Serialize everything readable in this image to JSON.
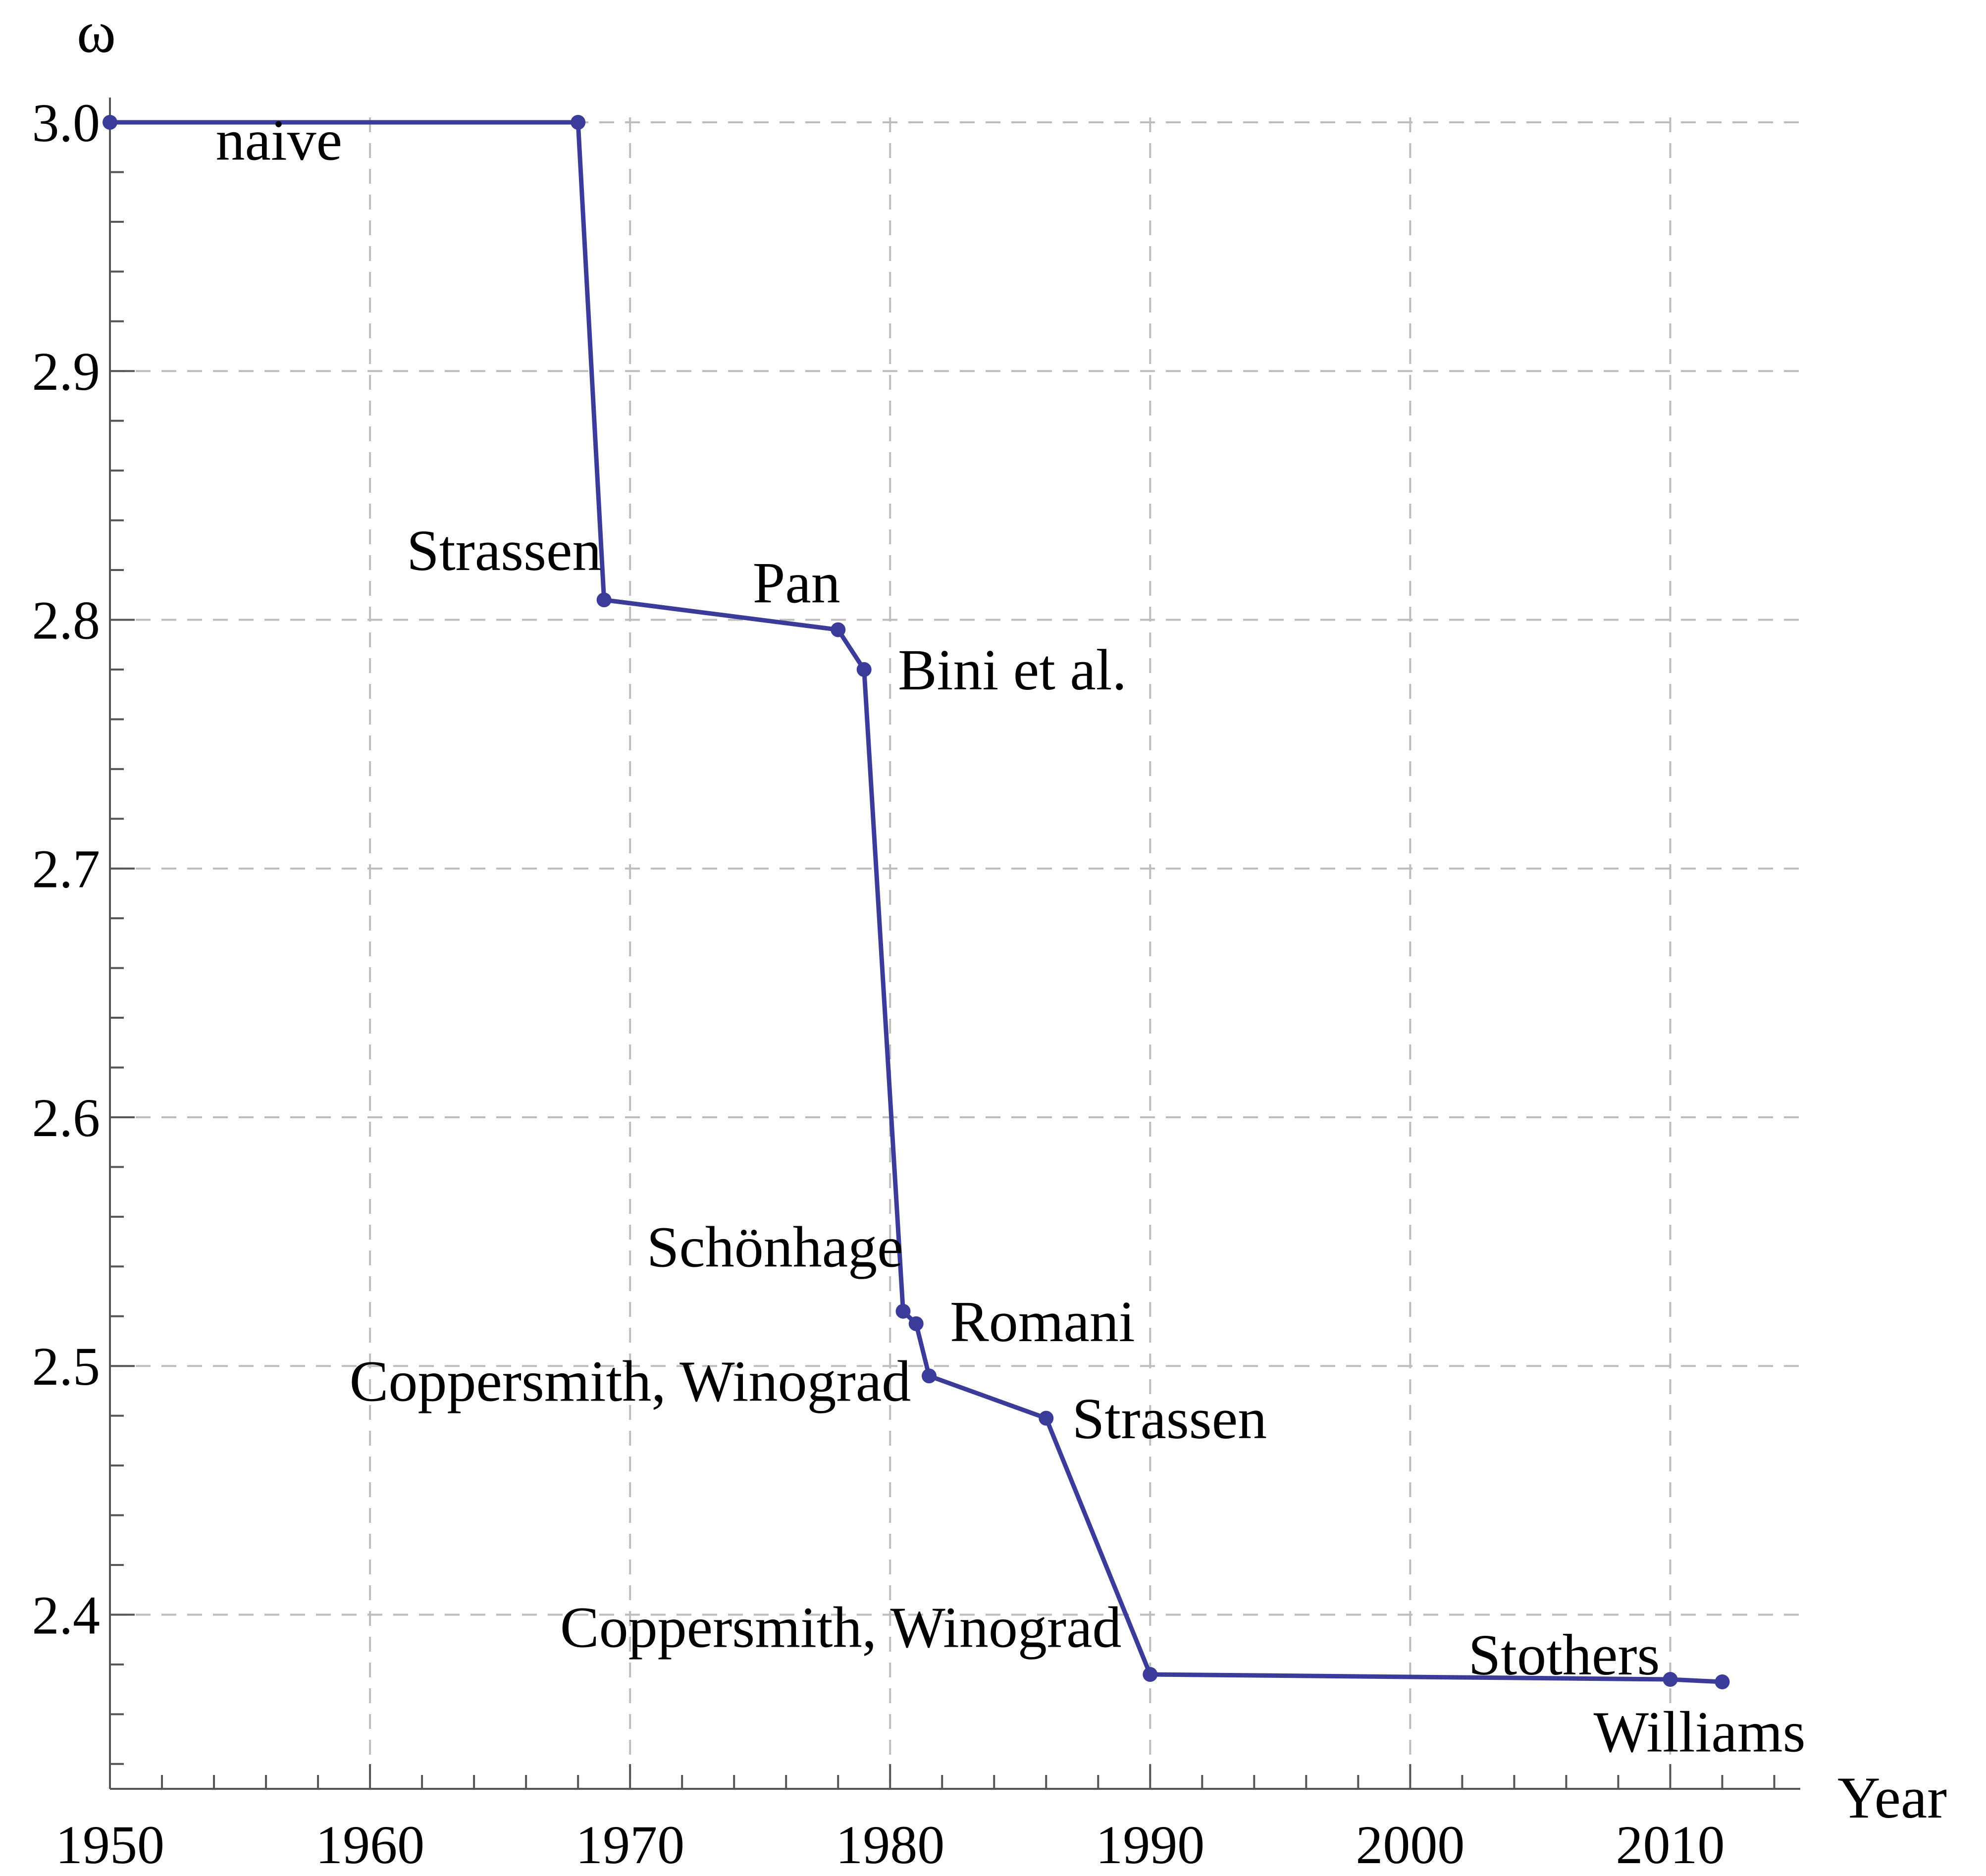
{
  "chart_data": {
    "type": "line",
    "title": "",
    "xlabel": "Year",
    "ylabel": "ω",
    "xlim": [
      1950,
      2015
    ],
    "ylim": [
      2.33,
      3.0
    ],
    "xticks": [
      1950,
      1960,
      1970,
      1980,
      1990,
      2000,
      2010
    ],
    "yticks": [
      2.4,
      2.5,
      2.6,
      2.7,
      2.8,
      2.9,
      3.0
    ],
    "ytick_labels": [
      "2.4",
      "2.5",
      "2.6",
      "2.7",
      "2.8",
      "2.9",
      "3.0"
    ],
    "grid": true,
    "color": "#3b3b9a",
    "x": [
      1950,
      1968,
      1969,
      1978,
      1979,
      1980.5,
      1981,
      1981.5,
      1986,
      1990,
      2010,
      2012
    ],
    "y": [
      3.0,
      3.0,
      2.808,
      2.796,
      2.78,
      2.522,
      2.517,
      2.496,
      2.479,
      2.376,
      2.374,
      2.373
    ],
    "annotations": [
      {
        "text": "naive",
        "x": 1956.5,
        "y": 2.985,
        "anchor": "middle"
      },
      {
        "text": "Strassen",
        "x": 1968.9,
        "y": 2.82,
        "anchor": "end"
      },
      {
        "text": "Pan",
        "x": 1976.4,
        "y": 2.807,
        "anchor": "middle"
      },
      {
        "text": "Bini et al.",
        "x": 1980.3,
        "y": 2.772,
        "anchor": "start"
      },
      {
        "text": "Schönhage",
        "x": 1980.5,
        "y": 2.54,
        "anchor": "end"
      },
      {
        "text": "Romani",
        "x": 1982.3,
        "y": 2.51,
        "anchor": "start"
      },
      {
        "text": "Coppersmith, Winograd",
        "x": 1980.8,
        "y": 2.486,
        "anchor": "end"
      },
      {
        "text": "Strassen",
        "x": 1987.0,
        "y": 2.471,
        "anchor": "start"
      },
      {
        "text": "Coppersmith, Winograd",
        "x": 1988.9,
        "y": 2.387,
        "anchor": "end"
      },
      {
        "text": "Stothers",
        "x": 2009.6,
        "y": 2.376,
        "anchor": "end"
      },
      {
        "text": "Williams",
        "x": 2015.2,
        "y": 2.345,
        "anchor": "end"
      }
    ]
  }
}
